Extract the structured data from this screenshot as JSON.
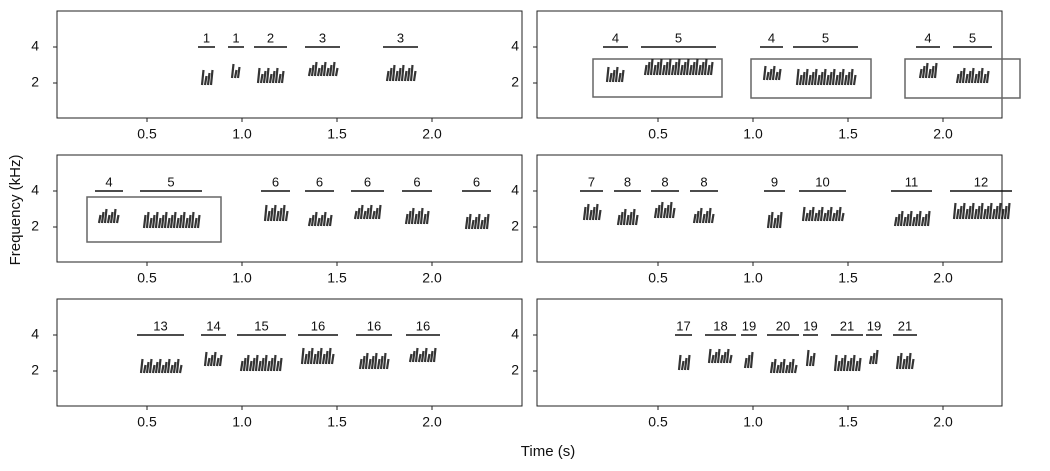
{
  "y_label": "Frequency (kHz)",
  "x_label": "Time (s)",
  "panels": [
    {
      "yticks": [
        "2",
        "4"
      ],
      "xticks": [
        "0.5",
        "1.0",
        "1.5",
        "2.0"
      ],
      "syllables": [
        "1",
        "1",
        "2",
        "3",
        "3"
      ]
    },
    {
      "yticks": [
        "2",
        "4"
      ],
      "xticks": [
        "0.5",
        "1.0",
        "1.5",
        "2.0"
      ],
      "syllables": [
        "4",
        "5",
        "4",
        "5",
        "4",
        "5"
      ]
    },
    {
      "yticks": [
        "2",
        "4"
      ],
      "xticks": [
        "0.5",
        "1.0",
        "1.5",
        "2.0"
      ],
      "syllables": [
        "4",
        "5",
        "6",
        "6",
        "6",
        "6",
        "6"
      ]
    },
    {
      "yticks": [
        "2",
        "4"
      ],
      "xticks": [
        "0.5",
        "1.0",
        "1.5",
        "2.0"
      ],
      "syllables": [
        "7",
        "8",
        "8",
        "8",
        "9",
        "10",
        "11",
        "12"
      ]
    },
    {
      "yticks": [
        "2",
        "4"
      ],
      "xticks": [
        "0.5",
        "1.0",
        "1.5",
        "2.0"
      ],
      "syllables": [
        "13",
        "14",
        "15",
        "16",
        "16",
        "16"
      ]
    },
    {
      "yticks": [
        "2",
        "4"
      ],
      "xticks": [
        "0.5",
        "1.0",
        "1.5",
        "2.0"
      ],
      "syllables": [
        "17",
        "18",
        "19",
        "20",
        "19",
        "21",
        "19",
        "21"
      ]
    }
  ]
}
